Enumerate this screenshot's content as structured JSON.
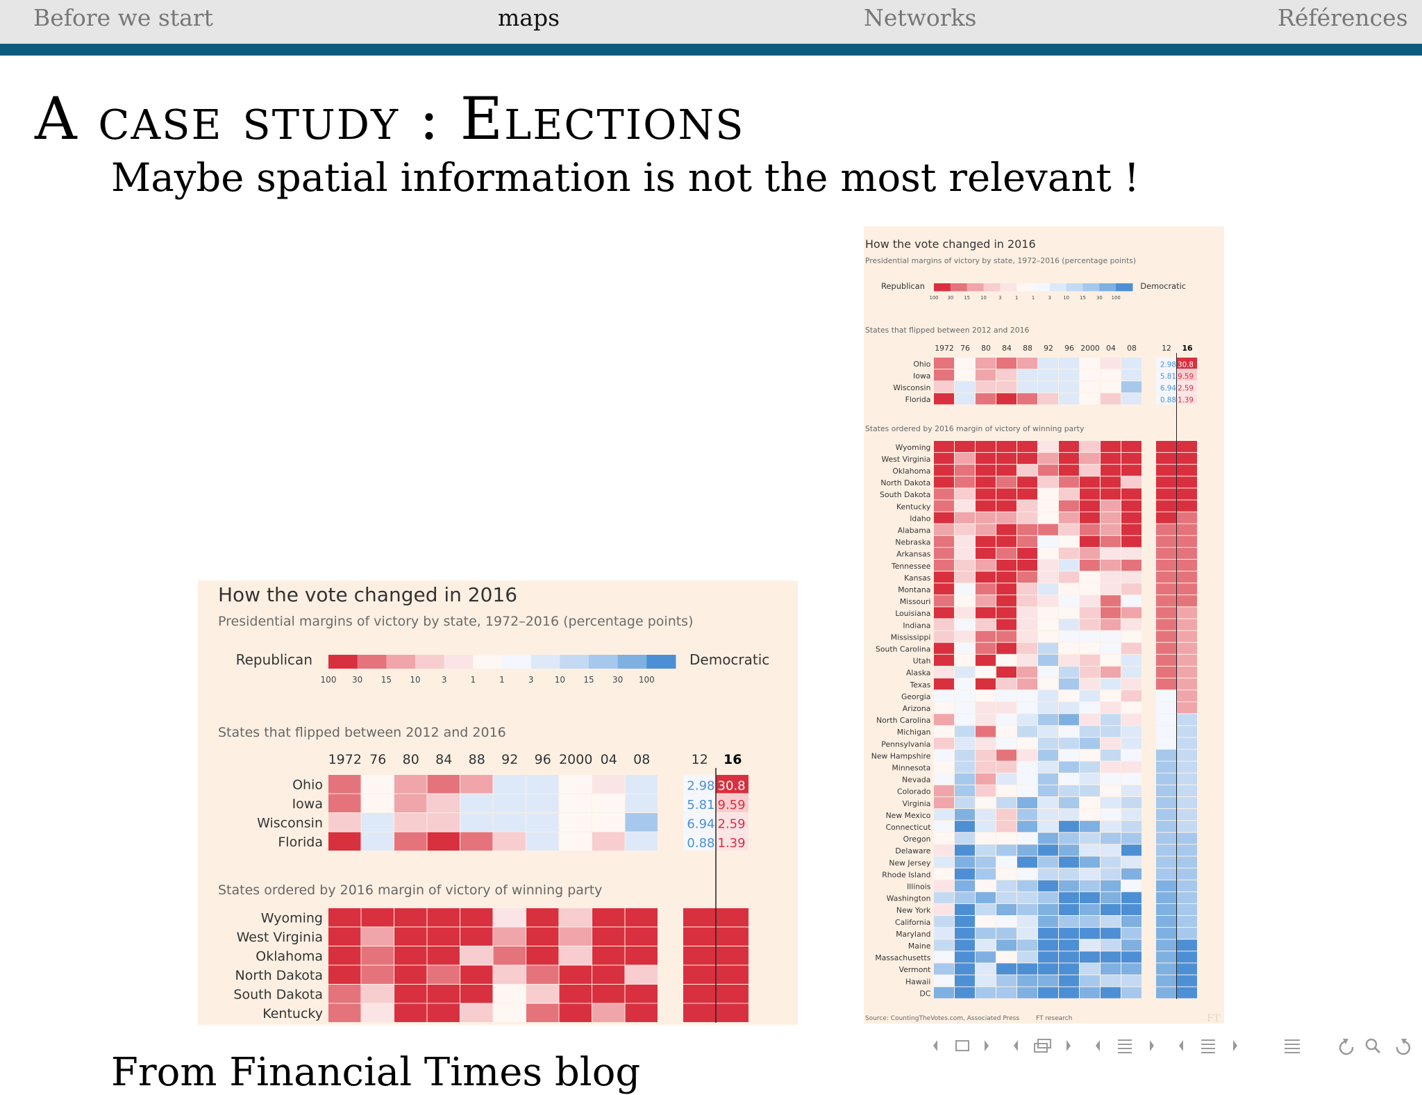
{
  "nav": {
    "items": [
      {
        "label": "Before we start",
        "active": false
      },
      {
        "label": "maps",
        "active": true
      },
      {
        "label": "Networks",
        "active": false
      },
      {
        "label": "Références",
        "active": false
      }
    ],
    "bar_color": "#0c5a7e"
  },
  "slide": {
    "title": "A case study : Elections",
    "subtitle": "Maybe spatial information is not the most relevant !",
    "bottom_text": "From Financial Times blog"
  },
  "figure": {
    "title": "How the vote changed in 2016",
    "subtitle": "Presidential margins of victory by state, 1972–2016 (percentage points)",
    "legend": {
      "left_label": "Republican",
      "right_label": "Democratic",
      "ticks": [
        "100",
        "30",
        "15",
        "10",
        "3",
        "1",
        "1",
        "3",
        "10",
        "15",
        "30",
        "100"
      ],
      "colors": [
        "#d9303f",
        "#e5737c",
        "#f0a5aa",
        "#f7cdd0",
        "#fbe4e5",
        "#fef7f4",
        "#f4f7fd",
        "#dde9f8",
        "#c4daf2",
        "#a6c8ec",
        "#7fb0e2",
        "#4d8fd5"
      ]
    },
    "flipped_heading": "States that flipped between 2012 and 2016",
    "ordered_heading": "States ordered by 2016 margin of victory of winning party",
    "years": [
      "1972",
      "76",
      "80",
      "84",
      "88",
      "92",
      "96",
      "2000",
      "04",
      "08",
      "12",
      "16"
    ],
    "flipped_states": [
      {
        "name": "Ohio",
        "v2012": "2.98",
        "v2016": "30.8"
      },
      {
        "name": "Iowa",
        "v2012": "5.81",
        "v2016": "9.59"
      },
      {
        "name": "Wisconsin",
        "v2012": "6.94",
        "v2016": "2.59"
      },
      {
        "name": "Florida",
        "v2012": "0.88",
        "v2016": "1.39"
      }
    ],
    "ordered_states_small": [
      "Wyoming",
      "West Virginia",
      "Oklahoma",
      "North Dakota",
      "South Dakota",
      "Kentucky"
    ],
    "ordered_states": [
      "Wyoming",
      "West Virginia",
      "Oklahoma",
      "North Dakota",
      "South Dakota",
      "Kentucky",
      "Idaho",
      "Alabama",
      "Nebraska",
      "Arkansas",
      "Tennessee",
      "Kansas",
      "Montana",
      "Missouri",
      "Louisiana",
      "Indiana",
      "Mississippi",
      "South Carolina",
      "Utah",
      "Alaska",
      "Texas",
      "Georgia",
      "Arizona",
      "North Carolina",
      "Michigan",
      "Pennsylvania",
      "New Hampshire",
      "Minnesota",
      "Nevada",
      "Colorado",
      "Virginia",
      "New Mexico",
      "Connecticut",
      "Oregon",
      "Delaware",
      "New Jersey",
      "Rhode Island",
      "Illinois",
      "Washington",
      "New York",
      "California",
      "Maryland",
      "Maine",
      "Massachusetts",
      "Vermont",
      "Hawaii",
      "DC"
    ],
    "source_left": "Source: CountingTheVotes.com, Associated Press",
    "source_right": "FT research",
    "watermark": "FT"
  },
  "controls": {
    "icons": [
      "arrow-left",
      "frame-icon",
      "arrow-right",
      "arrow-left",
      "subsection-icon",
      "arrow-right",
      "arrow-left",
      "section-icon",
      "arrow-right",
      "arrow-left",
      "outline-icon",
      "arrow-right",
      "toc-icon",
      "back-icon",
      "search-icon",
      "forward-icon"
    ]
  }
}
